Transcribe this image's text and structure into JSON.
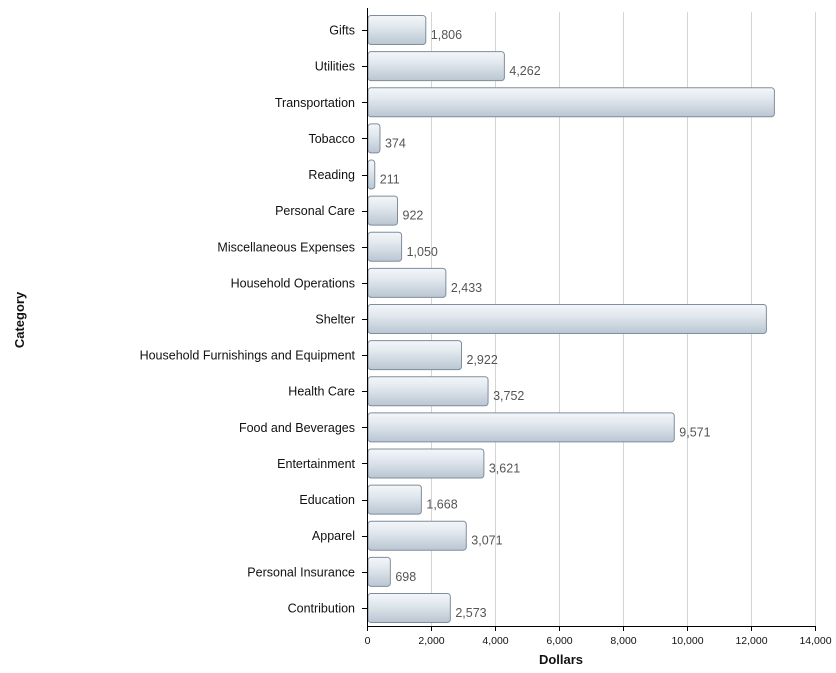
{
  "chart_data": {
    "type": "bar",
    "orientation": "horizontal",
    "title": "",
    "xlabel": "Dollars",
    "ylabel": "Category",
    "xlim": [
      0,
      14000
    ],
    "xticks": [
      0,
      2000,
      4000,
      6000,
      8000,
      10000,
      12000,
      14000
    ],
    "xtick_labels": [
      "0",
      "2,000",
      "4,000",
      "6,000",
      "8,000",
      "10,000",
      "12,000",
      "14,000"
    ],
    "grid": true,
    "legend": false,
    "colors": {
      "bar_fill_light": "#f4f7fa",
      "bar_fill_dark": "#b9c6d3",
      "bar_stroke": "#7f8d9c",
      "grid": "#d4d4d4"
    },
    "categories": [
      "Gifts",
      "Utilities",
      "Transportation",
      "Tobacco",
      "Reading",
      "Personal Care",
      "Miscellaneous Expenses",
      "Household Operations",
      "Shelter",
      "Household Furnishings and Equipment",
      "Health Care",
      "Food and Beverages",
      "Entertainment",
      "Education",
      "Apparel",
      "Personal Insurance",
      "Contribution"
    ],
    "values": [
      1806,
      4262,
      12700,
      374,
      211,
      922,
      1050,
      2433,
      12450,
      2922,
      3752,
      9571,
      3621,
      1668,
      3071,
      698,
      2573
    ],
    "value_labels": [
      "1,806",
      "4,262",
      "",
      "374",
      "211",
      "922",
      "1,050",
      "2,433",
      "",
      "2,922",
      "3,752",
      "9,571",
      "3,621",
      "1,668",
      "3,071",
      "698",
      "2,573"
    ]
  }
}
